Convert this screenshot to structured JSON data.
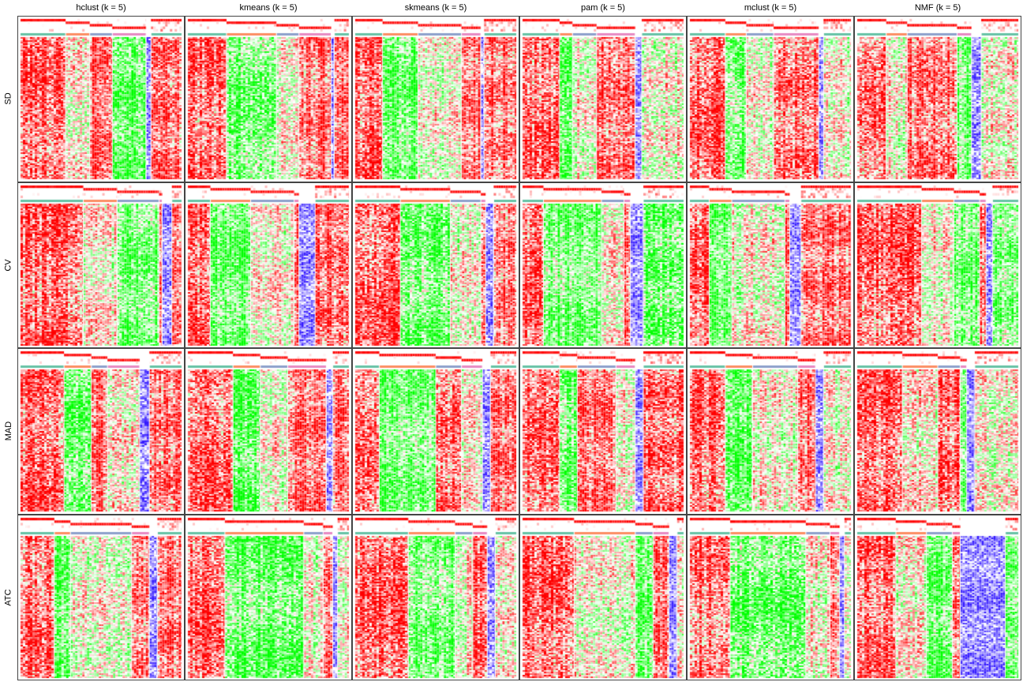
{
  "chart_data": {
    "type": "heatmap",
    "title": "",
    "columns": [
      {
        "label": "hclust (k = 5)"
      },
      {
        "label": "kmeans (k = 5)"
      },
      {
        "label": "skmeans (k = 5)"
      },
      {
        "label": "pam (k = 5)"
      },
      {
        "label": "mclust (k = 5)"
      },
      {
        "label": "NMF (k = 5)"
      }
    ],
    "rows": [
      {
        "label": "SD"
      },
      {
        "label": "CV"
      },
      {
        "label": "MAD"
      },
      {
        "label": "ATC"
      }
    ],
    "k": 5,
    "color_scale": {
      "low": "#00ff00",
      "mid": "#ffffff",
      "high": "#ff0000"
    },
    "class_colors": [
      "#66c2a5",
      "#fc8d62",
      "#8da0cb",
      "#e78ac3",
      "#a6d854"
    ],
    "membership_color": "#ff0000",
    "special_column_color": "#0000ff",
    "panels": [
      [
        {
          "fractions": [
            0.28,
            0.15,
            0.14,
            0.21,
            0.03,
            0.19
          ],
          "pattern": [
            1,
            0,
            1,
            -1,
            2,
            1
          ]
        },
        {
          "fractions": [
            0.24,
            0.31,
            0.14,
            0.2,
            0.02,
            0.09
          ],
          "pattern": [
            1,
            -1,
            0,
            1,
            2,
            1
          ]
        },
        {
          "fractions": [
            0.17,
            0.22,
            0.27,
            0.12,
            0.02,
            0.2
          ],
          "pattern": [
            1,
            -1,
            0,
            1,
            2,
            1
          ]
        },
        {
          "fractions": [
            0.23,
            0.08,
            0.15,
            0.24,
            0.04,
            0.26
          ],
          "pattern": [
            1,
            -1,
            0,
            1,
            2,
            0
          ]
        },
        {
          "fractions": [
            0.22,
            0.13,
            0.17,
            0.28,
            0.03,
            0.17
          ],
          "pattern": [
            1,
            -1,
            0,
            1,
            2,
            0
          ]
        },
        {
          "fractions": [
            0.18,
            0.13,
            0.31,
            0.09,
            0.06,
            0.23
          ],
          "pattern": [
            1,
            0,
            1,
            -1,
            2,
            0
          ]
        }
      ],
      [
        {
          "fractions": [
            0.39,
            0.21,
            0.26,
            0.02,
            0.06,
            0.06
          ],
          "pattern": [
            1,
            0,
            -1,
            1,
            2,
            1
          ]
        },
        {
          "fractions": [
            0.14,
            0.25,
            0.27,
            0.03,
            0.1,
            0.21
          ],
          "pattern": [
            1,
            -1,
            0,
            1,
            2,
            1
          ]
        },
        {
          "fractions": [
            0.28,
            0.31,
            0.19,
            0.03,
            0.05,
            0.14
          ],
          "pattern": [
            1,
            -1,
            0,
            1,
            2,
            1
          ]
        },
        {
          "fractions": [
            0.13,
            0.36,
            0.14,
            0.04,
            0.08,
            0.25
          ],
          "pattern": [
            1,
            -1,
            0,
            1,
            2,
            -1
          ]
        },
        {
          "fractions": [
            0.12,
            0.14,
            0.33,
            0.03,
            0.07,
            0.31
          ],
          "pattern": [
            1,
            -1,
            0,
            1,
            2,
            1
          ]
        },
        {
          "fractions": [
            0.4,
            0.2,
            0.16,
            0.04,
            0.04,
            0.16
          ],
          "pattern": [
            1,
            0,
            -1,
            1,
            2,
            -1
          ]
        }
      ],
      [
        {
          "fractions": [
            0.27,
            0.17,
            0.1,
            0.2,
            0.06,
            0.2
          ],
          "pattern": [
            1,
            -1,
            1,
            0,
            2,
            1
          ]
        },
        {
          "fractions": [
            0.28,
            0.17,
            0.17,
            0.24,
            0.04,
            0.1
          ],
          "pattern": [
            1,
            -1,
            0,
            1,
            2,
            1
          ]
        },
        {
          "fractions": [
            0.15,
            0.35,
            0.16,
            0.13,
            0.05,
            0.16
          ],
          "pattern": [
            1,
            -1,
            1,
            0,
            2,
            1
          ]
        },
        {
          "fractions": [
            0.23,
            0.11,
            0.24,
            0.12,
            0.05,
            0.25
          ],
          "pattern": [
            1,
            -1,
            1,
            0,
            2,
            1
          ]
        },
        {
          "fractions": [
            0.22,
            0.17,
            0.28,
            0.11,
            0.05,
            0.17
          ],
          "pattern": [
            1,
            -1,
            0,
            1,
            2,
            0
          ]
        },
        {
          "fractions": [
            0.28,
            0.22,
            0.14,
            0.04,
            0.05,
            0.27
          ],
          "pattern": [
            1,
            0,
            1,
            -1,
            2,
            0
          ]
        }
      ],
      [
        {
          "fractions": [
            0.21,
            0.1,
            0.38,
            0.11,
            0.05,
            0.15
          ],
          "pattern": [
            1,
            -1,
            0,
            1,
            2,
            1
          ]
        },
        {
          "fractions": [
            0.23,
            0.49,
            0.12,
            0.06,
            0.03,
            0.07
          ],
          "pattern": [
            1,
            -1,
            0,
            1,
            2,
            0
          ]
        },
        {
          "fractions": [
            0.33,
            0.29,
            0.11,
            0.09,
            0.05,
            0.13
          ],
          "pattern": [
            1,
            -1,
            0,
            1,
            2,
            0
          ]
        },
        {
          "fractions": [
            0.32,
            0.38,
            0.11,
            0.1,
            0.05,
            0.04
          ],
          "pattern": [
            1,
            0,
            -1,
            1,
            2,
            0
          ]
        },
        {
          "fractions": [
            0.25,
            0.47,
            0.15,
            0.06,
            0.03,
            0.04
          ],
          "pattern": [
            1,
            -1,
            0,
            1,
            2,
            0
          ]
        },
        {
          "fractions": [
            0.24,
            0.19,
            0.16,
            0.05,
            0.28,
            0.08
          ],
          "pattern": [
            1,
            0,
            -1,
            1,
            2,
            -1
          ]
        }
      ]
    ]
  }
}
